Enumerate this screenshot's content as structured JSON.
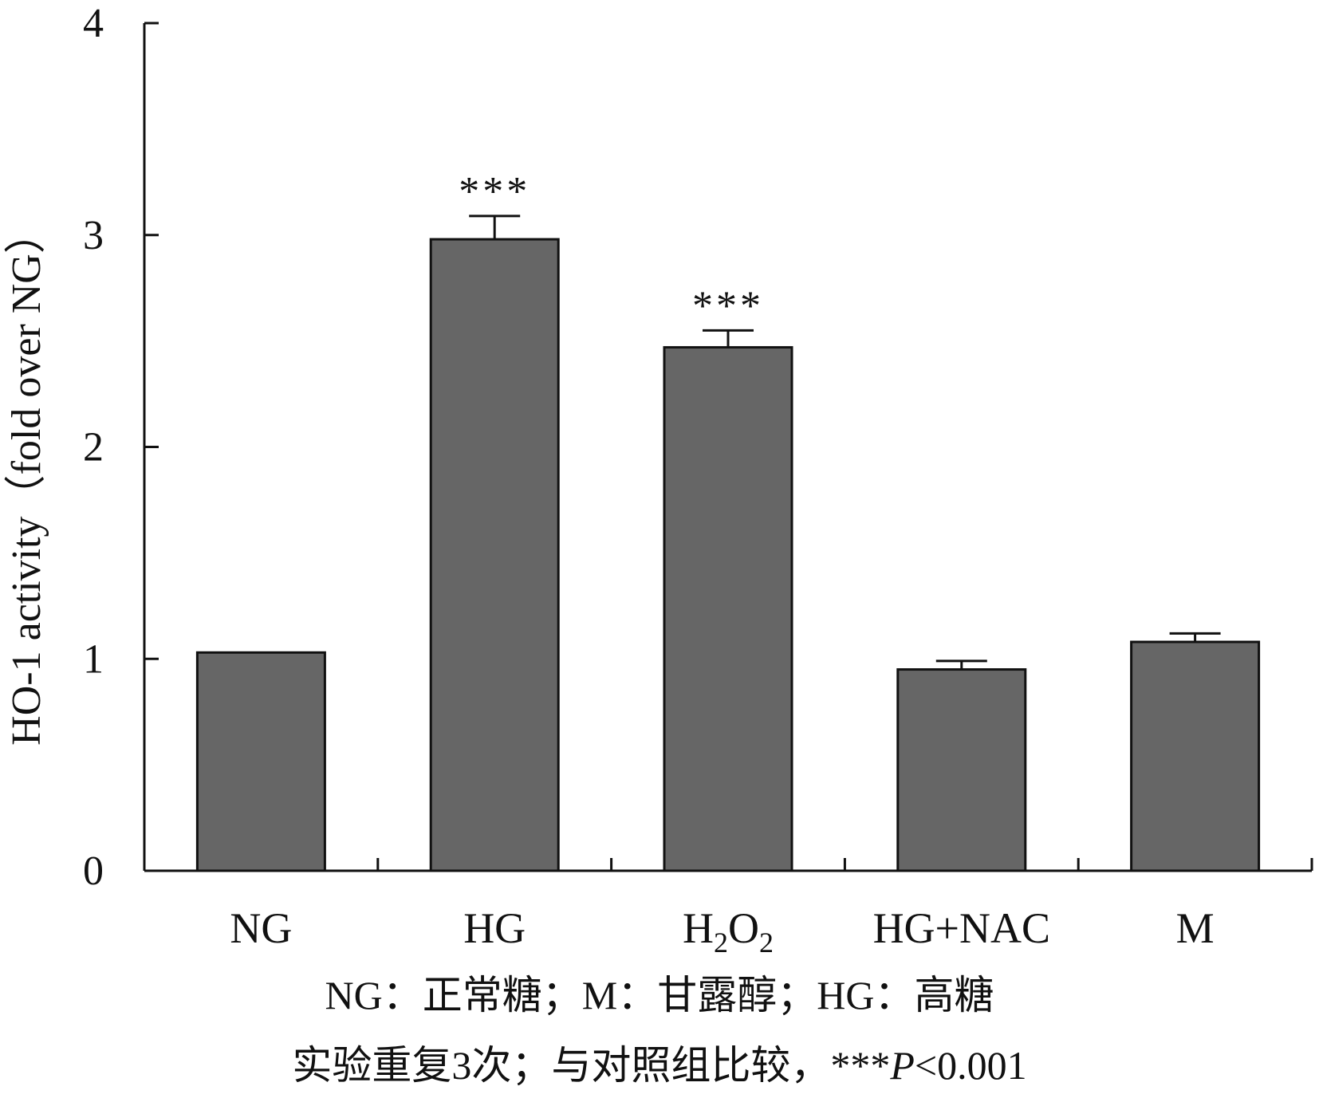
{
  "chart_data": {
    "type": "bar",
    "categories": [
      "NG",
      "HG",
      "H2O2",
      "HG+NAC",
      "M"
    ],
    "category_labels": [
      {
        "main": "NG",
        "parts": []
      },
      {
        "main": "HG",
        "parts": []
      },
      {
        "main": "",
        "parts": [
          [
            "H",
            ""
          ],
          [
            "2",
            "sub"
          ],
          [
            "O",
            ""
          ],
          [
            "2",
            "sub"
          ]
        ]
      },
      {
        "main": "HG+NAC",
        "parts": []
      },
      {
        "main": "M",
        "parts": []
      }
    ],
    "values": [
      1.03,
      2.98,
      2.47,
      0.95,
      1.08
    ],
    "errors": [
      0,
      0.11,
      0.08,
      0.04,
      0.04
    ],
    "annotations": [
      "",
      "***",
      "***",
      "",
      ""
    ],
    "ylabel": "HO-1 activity（fold over NG）",
    "ylim": [
      0,
      4
    ],
    "yticks": [
      "0",
      "1",
      "2",
      "3",
      "4"
    ],
    "grid": false,
    "bar_color": "#666666",
    "edge_color": "#111111"
  },
  "caption": {
    "line1": "NG：正常糖；M：甘露醇；HG：高糖",
    "line2_prefix": "实验重复3次；与对照组比较，***",
    "line2_italic": "P",
    "line2_suffix": "<0.001"
  }
}
